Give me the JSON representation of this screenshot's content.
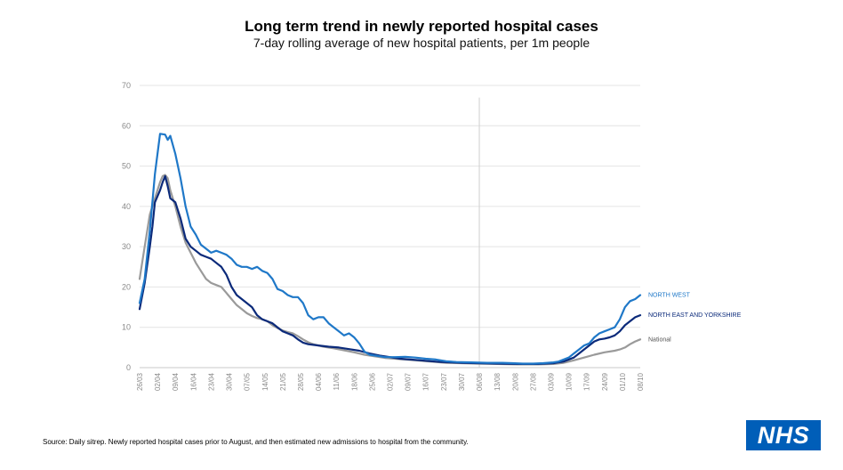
{
  "header": {
    "title": "Long term trend in newly reported hospital cases",
    "subtitle": "7-day rolling average of new hospital patients, per 1m people"
  },
  "footer": {
    "source": "Source: Daily sitrep. Newly reported hospital cases prior to August, and then estimated new admissions to hospital from the community.",
    "logo_text": "NHS"
  },
  "chart_data": {
    "type": "line",
    "title": "Long term trend in newly reported hospital cases",
    "subtitle": "7-day rolling average of new hospital patients, per 1m people",
    "xlabel": "",
    "ylabel": "",
    "ylim": [
      0,
      70
    ],
    "yticks": [
      0,
      10,
      20,
      30,
      40,
      50,
      60,
      70
    ],
    "grid": "horizontal",
    "x_range_days": [
      0,
      196
    ],
    "x_ticks": [
      {
        "label": "26/03",
        "day": 0
      },
      {
        "label": "02/04",
        "day": 7
      },
      {
        "label": "09/04",
        "day": 14
      },
      {
        "label": "16/04",
        "day": 21
      },
      {
        "label": "23/04",
        "day": 28
      },
      {
        "label": "30/04",
        "day": 35
      },
      {
        "label": "07/05",
        "day": 42
      },
      {
        "label": "14/05",
        "day": 49
      },
      {
        "label": "21/05",
        "day": 56
      },
      {
        "label": "28/05",
        "day": 63
      },
      {
        "label": "04/06",
        "day": 70
      },
      {
        "label": "11/06",
        "day": 77
      },
      {
        "label": "18/06",
        "day": 84
      },
      {
        "label": "25/06",
        "day": 91
      },
      {
        "label": "02/07",
        "day": 98
      },
      {
        "label": "09/07",
        "day": 105
      },
      {
        "label": "16/07",
        "day": 112
      },
      {
        "label": "23/07",
        "day": 119
      },
      {
        "label": "30/07",
        "day": 126
      },
      {
        "label": "06/08",
        "day": 133
      },
      {
        "label": "13/08",
        "day": 140
      },
      {
        "label": "20/08",
        "day": 147
      },
      {
        "label": "27/08",
        "day": 154
      },
      {
        "label": "03/09",
        "day": 161
      },
      {
        "label": "10/09",
        "day": 168
      },
      {
        "label": "17/09",
        "day": 175
      },
      {
        "label": "24/09",
        "day": 182
      },
      {
        "label": "01/10",
        "day": 189
      },
      {
        "label": "08/10",
        "day": 196
      }
    ],
    "vertical_marker_day": 133,
    "legend_placement": "right, at line ends",
    "series": [
      {
        "name": "NORTH WEST",
        "color": "#1f78c8",
        "width": 2.2,
        "points": [
          [
            0,
            16
          ],
          [
            2,
            22
          ],
          [
            4,
            34
          ],
          [
            6,
            48
          ],
          [
            8,
            58
          ],
          [
            10,
            57.8
          ],
          [
            11,
            56.5
          ],
          [
            12,
            57.5
          ],
          [
            14,
            53
          ],
          [
            16,
            47
          ],
          [
            18,
            40
          ],
          [
            20,
            35
          ],
          [
            22,
            33
          ],
          [
            24,
            30.5
          ],
          [
            26,
            29.5
          ],
          [
            28,
            28.5
          ],
          [
            30,
            29
          ],
          [
            32,
            28.5
          ],
          [
            34,
            28
          ],
          [
            36,
            27
          ],
          [
            38,
            25.5
          ],
          [
            40,
            25
          ],
          [
            42,
            25
          ],
          [
            44,
            24.5
          ],
          [
            46,
            25
          ],
          [
            48,
            24
          ],
          [
            50,
            23.5
          ],
          [
            52,
            22
          ],
          [
            54,
            19.5
          ],
          [
            56,
            19
          ],
          [
            58,
            18
          ],
          [
            60,
            17.5
          ],
          [
            62,
            17.5
          ],
          [
            64,
            16
          ],
          [
            66,
            13
          ],
          [
            68,
            12
          ],
          [
            70,
            12.5
          ],
          [
            72,
            12.5
          ],
          [
            74,
            11
          ],
          [
            76,
            10
          ],
          [
            78,
            9
          ],
          [
            80,
            8
          ],
          [
            82,
            8.5
          ],
          [
            84,
            7.5
          ],
          [
            86,
            6
          ],
          [
            88,
            4
          ],
          [
            90,
            3.2
          ],
          [
            92,
            3
          ],
          [
            94,
            2.8
          ],
          [
            96,
            2.6
          ],
          [
            98,
            2.6
          ],
          [
            100,
            2.6
          ],
          [
            104,
            2.7
          ],
          [
            108,
            2.5
          ],
          [
            112,
            2.2
          ],
          [
            116,
            2.0
          ],
          [
            120,
            1.6
          ],
          [
            124,
            1.4
          ],
          [
            130,
            1.3
          ],
          [
            136,
            1.2
          ],
          [
            142,
            1.2
          ],
          [
            146,
            1.1
          ],
          [
            150,
            1.0
          ],
          [
            154,
            1.0
          ],
          [
            158,
            1.1
          ],
          [
            162,
            1.3
          ],
          [
            164,
            1.5
          ],
          [
            166,
            2
          ],
          [
            168,
            2.5
          ],
          [
            170,
            3.5
          ],
          [
            172,
            4.5
          ],
          [
            174,
            5.5
          ],
          [
            176,
            6
          ],
          [
            178,
            7.5
          ],
          [
            180,
            8.5
          ],
          [
            182,
            9
          ],
          [
            184,
            9.5
          ],
          [
            186,
            10
          ],
          [
            188,
            12
          ],
          [
            190,
            15
          ],
          [
            192,
            16.5
          ],
          [
            194,
            17
          ],
          [
            196,
            18
          ]
        ]
      },
      {
        "name": "NORTH EAST AND YORKSHIRE",
        "color": "#0b2a7a",
        "width": 2.2,
        "points": [
          [
            0,
            14.5
          ],
          [
            2,
            21
          ],
          [
            4,
            30
          ],
          [
            5,
            35
          ],
          [
            6,
            41
          ],
          [
            8,
            44
          ],
          [
            9,
            46
          ],
          [
            10,
            47.5
          ],
          [
            11,
            45
          ],
          [
            12,
            42
          ],
          [
            14,
            41
          ],
          [
            16,
            37
          ],
          [
            18,
            32
          ],
          [
            20,
            30
          ],
          [
            22,
            29
          ],
          [
            24,
            28
          ],
          [
            26,
            27.5
          ],
          [
            28,
            27
          ],
          [
            30,
            26
          ],
          [
            32,
            25
          ],
          [
            34,
            23
          ],
          [
            36,
            20
          ],
          [
            38,
            18
          ],
          [
            40,
            17
          ],
          [
            42,
            16
          ],
          [
            44,
            15
          ],
          [
            46,
            13
          ],
          [
            48,
            12
          ],
          [
            50,
            11.5
          ],
          [
            52,
            11
          ],
          [
            54,
            10
          ],
          [
            56,
            9
          ],
          [
            58,
            8.5
          ],
          [
            60,
            8
          ],
          [
            62,
            7
          ],
          [
            64,
            6.2
          ],
          [
            66,
            5.8
          ],
          [
            70,
            5.5
          ],
          [
            74,
            5.2
          ],
          [
            78,
            5
          ],
          [
            82,
            4.6
          ],
          [
            86,
            4.2
          ],
          [
            90,
            3.5
          ],
          [
            94,
            3.0
          ],
          [
            98,
            2.6
          ],
          [
            102,
            2.2
          ],
          [
            106,
            2.0
          ],
          [
            110,
            1.8
          ],
          [
            114,
            1.6
          ],
          [
            118,
            1.4
          ],
          [
            122,
            1.3
          ],
          [
            126,
            1.2
          ],
          [
            132,
            1.1
          ],
          [
            140,
            1.0
          ],
          [
            148,
            0.9
          ],
          [
            156,
            0.9
          ],
          [
            162,
            1.1
          ],
          [
            166,
            1.5
          ],
          [
            170,
            2.5
          ],
          [
            172,
            3.5
          ],
          [
            174,
            4.5
          ],
          [
            176,
            5.5
          ],
          [
            178,
            6.5
          ],
          [
            180,
            7
          ],
          [
            182,
            7.2
          ],
          [
            184,
            7.5
          ],
          [
            186,
            8
          ],
          [
            188,
            9
          ],
          [
            190,
            10.5
          ],
          [
            192,
            11.5
          ],
          [
            194,
            12.5
          ],
          [
            196,
            13
          ]
        ]
      },
      {
        "name": "National",
        "color": "#9a9a9a",
        "width": 2.2,
        "points": [
          [
            0,
            22
          ],
          [
            2,
            30
          ],
          [
            4,
            38
          ],
          [
            6,
            42
          ],
          [
            8,
            46
          ],
          [
            9,
            47.5
          ],
          [
            10,
            47.8
          ],
          [
            11,
            47
          ],
          [
            12,
            44
          ],
          [
            14,
            40
          ],
          [
            16,
            35
          ],
          [
            18,
            31
          ],
          [
            20,
            28.5
          ],
          [
            22,
            26
          ],
          [
            24,
            24
          ],
          [
            26,
            22
          ],
          [
            28,
            21
          ],
          [
            30,
            20.5
          ],
          [
            32,
            20
          ],
          [
            34,
            18.5
          ],
          [
            36,
            17
          ],
          [
            38,
            15.5
          ],
          [
            40,
            14.5
          ],
          [
            42,
            13.5
          ],
          [
            44,
            12.8
          ],
          [
            46,
            12.3
          ],
          [
            48,
            12
          ],
          [
            50,
            11.5
          ],
          [
            52,
            10.5
          ],
          [
            54,
            9.8
          ],
          [
            56,
            9.2
          ],
          [
            58,
            8.8
          ],
          [
            60,
            8.5
          ],
          [
            62,
            7.8
          ],
          [
            64,
            7
          ],
          [
            66,
            6.3
          ],
          [
            68,
            5.8
          ],
          [
            72,
            5.2
          ],
          [
            76,
            4.8
          ],
          [
            80,
            4.3
          ],
          [
            84,
            3.8
          ],
          [
            88,
            3.2
          ],
          [
            92,
            2.8
          ],
          [
            96,
            2.4
          ],
          [
            100,
            2.2
          ],
          [
            104,
            2.0
          ],
          [
            108,
            1.8
          ],
          [
            112,
            1.6
          ],
          [
            116,
            1.4
          ],
          [
            120,
            1.2
          ],
          [
            126,
            1.1
          ],
          [
            132,
            1.0
          ],
          [
            140,
            0.9
          ],
          [
            148,
            0.8
          ],
          [
            156,
            0.8
          ],
          [
            162,
            0.9
          ],
          [
            166,
            1.2
          ],
          [
            170,
            1.8
          ],
          [
            174,
            2.5
          ],
          [
            178,
            3.2
          ],
          [
            182,
            3.8
          ],
          [
            186,
            4.2
          ],
          [
            188,
            4.5
          ],
          [
            190,
            5
          ],
          [
            192,
            5.8
          ],
          [
            194,
            6.5
          ],
          [
            196,
            7
          ]
        ]
      }
    ]
  }
}
